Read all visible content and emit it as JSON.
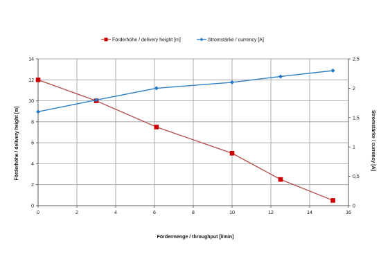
{
  "chart_data": {
    "type": "line",
    "title": "",
    "xlabel": "Fördermenge / throughput [l/min]",
    "ylabel_left": "Förderhöhe / delivery height [m]",
    "ylabel_right": "Stromstärke / currency [A]",
    "xlim": [
      0,
      16
    ],
    "ylim_left": [
      0,
      14
    ],
    "ylim_right": [
      0,
      2.5
    ],
    "x_ticks": [
      "0",
      "2",
      "4",
      "6",
      "8",
      "10",
      "12",
      "14",
      "16"
    ],
    "y_left_ticks": [
      "0",
      "2",
      "4",
      "6",
      "8",
      "10",
      "12",
      "14"
    ],
    "y_right_ticks": [
      "0",
      "0,5",
      "1",
      "1,5",
      "2",
      "2,5"
    ],
    "grid": true,
    "legend_position": "top",
    "series": [
      {
        "name": "Förderhöhe / delivery height  [m]",
        "axis": "left",
        "color": "#cc0000",
        "line_color": "#b5524e",
        "marker": "square",
        "x": [
          0,
          3,
          6.1,
          10,
          12.5,
          15.2
        ],
        "values": [
          12,
          10,
          7.5,
          5,
          2.5,
          0.5
        ]
      },
      {
        "name": "Stromstärke / currency [A]",
        "axis": "right",
        "color": "#1f78c8",
        "line_color": "#2e7fc4",
        "marker": "diamond",
        "x": [
          0,
          3,
          6.1,
          10,
          12.5,
          15.2
        ],
        "values": [
          1.6,
          1.8,
          2.0,
          2.1,
          2.2,
          2.3
        ]
      }
    ]
  }
}
